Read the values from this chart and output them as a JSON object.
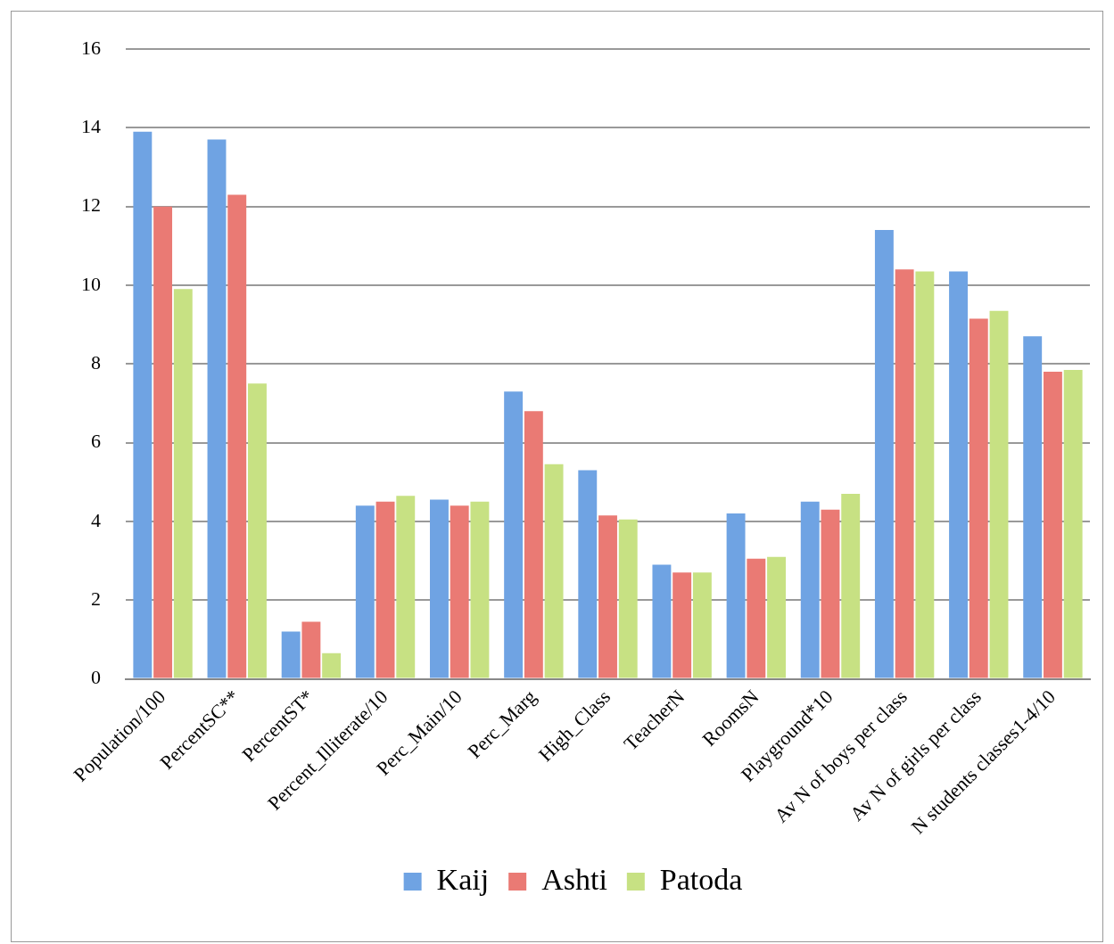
{
  "chart_data": {
    "type": "bar",
    "categories": [
      "Population/100",
      "PercentSC**",
      "PercentST*",
      "Percent_Illiterate/10",
      "Perc_Main/10",
      "Perc_Marg",
      "High_Class",
      "TeacherN",
      "RoomsN",
      "Playground*10",
      "Av N of boys per class",
      "Av N of girls per class",
      "N students classes1-4/10"
    ],
    "series": [
      {
        "name": "Kaij",
        "color": "#6fa3e3",
        "values": [
          13.9,
          13.7,
          1.2,
          4.4,
          4.55,
          7.3,
          5.3,
          2.9,
          4.2,
          4.5,
          11.4,
          10.35,
          8.7
        ]
      },
      {
        "name": "Ashti",
        "color": "#ea7a74",
        "values": [
          12.0,
          12.3,
          1.45,
          4.5,
          4.4,
          6.8,
          4.15,
          2.7,
          3.05,
          4.3,
          10.4,
          9.15,
          7.8
        ]
      },
      {
        "name": "Patoda",
        "color": "#c7e183",
        "values": [
          9.9,
          7.5,
          0.65,
          4.65,
          4.5,
          5.45,
          4.05,
          2.7,
          3.1,
          4.7,
          10.35,
          9.35,
          7.85
        ]
      }
    ],
    "ylim": [
      0,
      16
    ],
    "yticks": [
      0,
      2,
      4,
      6,
      8,
      10,
      12,
      14,
      16
    ],
    "grid": "y",
    "legend": "bottom"
  }
}
